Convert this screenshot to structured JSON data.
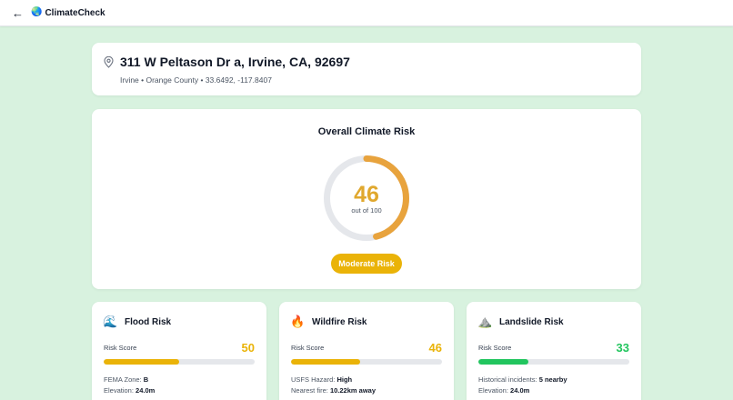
{
  "header": {
    "back_icon": "arrow-left-icon",
    "logo_icon": "globe-icon",
    "brand": "ClimateCheck"
  },
  "address": {
    "icon": "map-pin-icon",
    "title": "311 W Peltason Dr a, Irvine, CA, 92697",
    "subtitle": "Irvine • Orange County • 33.6492, -117.8407"
  },
  "overall": {
    "title": "Overall Climate Risk",
    "score": "46",
    "score_sub": "out of 100",
    "score_value": 46,
    "max": 100,
    "badge": "Moderate Risk",
    "colors": {
      "arc": "#e8a33d",
      "track": "#e5e7eb",
      "score_text": "#e0a82e",
      "badge": "#eab308"
    }
  },
  "risks": [
    {
      "id": "flood",
      "icon": "water-wave-icon",
      "glyph": "🌊",
      "title": "Flood Risk",
      "score_label": "Risk Score",
      "score": "50",
      "score_value": 50,
      "color": "#eab308",
      "details": [
        {
          "label": "FEMA Zone:",
          "value": "B"
        },
        {
          "label": "Elevation:",
          "value": "24.0m"
        }
      ]
    },
    {
      "id": "wildfire",
      "icon": "fire-icon",
      "glyph": "🔥",
      "title": "Wildfire Risk",
      "score_label": "Risk Score",
      "score": "46",
      "score_value": 46,
      "color": "#eab308",
      "details": [
        {
          "label": "USFS Hazard:",
          "value": "High"
        },
        {
          "label": "Nearest fire:",
          "value": "10.22km away"
        }
      ]
    },
    {
      "id": "landslide",
      "icon": "mountain-icon",
      "glyph": "⛰️",
      "title": "Landslide Risk",
      "score_label": "Risk Score",
      "score": "33",
      "score_value": 33,
      "color": "#22c55e",
      "details": [
        {
          "label": "Historical incidents:",
          "value": "5 nearby"
        },
        {
          "label": "Elevation:",
          "value": "24.0m"
        }
      ]
    }
  ]
}
